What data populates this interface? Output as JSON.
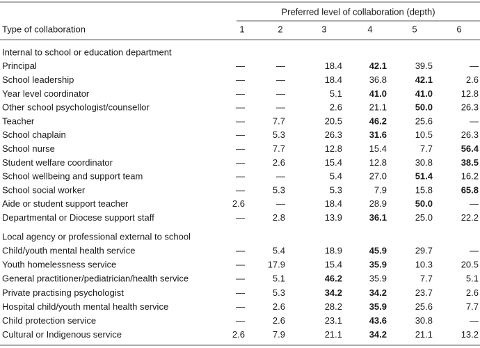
{
  "header": {
    "group_title": "Preferred level of collaboration (depth)",
    "row_header": "Type of collaboration",
    "columns": [
      "1",
      "2",
      "3",
      "4",
      "5",
      "6"
    ]
  },
  "sections": [
    {
      "title": "Internal to school or education department",
      "rows": [
        {
          "label": "Principal",
          "cells": [
            "—",
            "—",
            "18.4",
            "42.1",
            "39.5",
            "—"
          ],
          "bold": [
            3
          ]
        },
        {
          "label": "School leadership",
          "cells": [
            "—",
            "—",
            "18.4",
            "36.8",
            "42.1",
            "2.6"
          ],
          "bold": [
            4
          ]
        },
        {
          "label": "Year level coordinator",
          "cells": [
            "—",
            "—",
            "5.1",
            "41.0",
            "41.0",
            "12.8"
          ],
          "bold": [
            3,
            4
          ]
        },
        {
          "label": "Other school psychologist/counsellor",
          "cells": [
            "—",
            "—",
            "2.6",
            "21.1",
            "50.0",
            "26.3"
          ],
          "bold": [
            4
          ]
        },
        {
          "label": "Teacher",
          "cells": [
            "—",
            "7.7",
            "20.5",
            "46.2",
            "25.6",
            "—"
          ],
          "bold": [
            3
          ]
        },
        {
          "label": "School chaplain",
          "cells": [
            "—",
            "5.3",
            "26.3",
            "31.6",
            "10.5",
            "26.3"
          ],
          "bold": [
            3
          ]
        },
        {
          "label": "School nurse",
          "cells": [
            "—",
            "7.7",
            "12.8",
            "15.4",
            "7.7",
            "56.4"
          ],
          "bold": [
            5
          ]
        },
        {
          "label": "Student welfare coordinator",
          "cells": [
            "—",
            "2.6",
            "15.4",
            "12.8",
            "30.8",
            "38.5"
          ],
          "bold": [
            5
          ]
        },
        {
          "label": "School wellbeing and support team",
          "cells": [
            "—",
            "—",
            "5.4",
            "27.0",
            "51.4",
            "16.2"
          ],
          "bold": [
            4
          ]
        },
        {
          "label": "School social worker",
          "cells": [
            "—",
            "5.3",
            "5.3",
            "7.9",
            "15.8",
            "65.8"
          ],
          "bold": [
            5
          ]
        },
        {
          "label": "Aide or student support teacher",
          "cells": [
            "2.6",
            "—",
            "18.4",
            "28.9",
            "50.0",
            "—"
          ],
          "bold": [
            4
          ]
        },
        {
          "label": "Departmental or Diocese support staff",
          "cells": [
            "—",
            "2.8",
            "13.9",
            "36.1",
            "25.0",
            "22.2"
          ],
          "bold": [
            3
          ]
        }
      ]
    },
    {
      "title": "Local agency or professional external to school",
      "rows": [
        {
          "label": "Child/youth mental health service",
          "cells": [
            "—",
            "5.4",
            "18.9",
            "45.9",
            "29.7",
            "—"
          ],
          "bold": [
            3
          ]
        },
        {
          "label": "Youth homelessness service",
          "cells": [
            "—",
            "17.9",
            "15.4",
            "35.9",
            "10.3",
            "20.5"
          ],
          "bold": [
            3
          ]
        },
        {
          "label": "General practitioner/pediatrician/health service",
          "cells": [
            "—",
            "5.1",
            "46.2",
            "35.9",
            "7.7",
            "5.1"
          ],
          "bold": [
            2
          ]
        },
        {
          "label": "Private practising psychologist",
          "cells": [
            "—",
            "5.3",
            "34.2",
            "34.2",
            "23.7",
            "2.6"
          ],
          "bold": [
            2,
            3
          ]
        },
        {
          "label": "Hospital child/youth mental health service",
          "cells": [
            "—",
            "2.6",
            "28.2",
            "35.9",
            "25.6",
            "7.7"
          ],
          "bold": [
            3
          ]
        },
        {
          "label": "Child protection service",
          "cells": [
            "—",
            "2.6",
            "23.1",
            "43.6",
            "30.8",
            "—"
          ],
          "bold": [
            3
          ]
        },
        {
          "label": "Cultural or Indigenous service",
          "cells": [
            "2.6",
            "7.9",
            "21.1",
            "34.2",
            "21.1",
            "13.2"
          ],
          "bold": [
            3
          ]
        }
      ]
    }
  ]
}
